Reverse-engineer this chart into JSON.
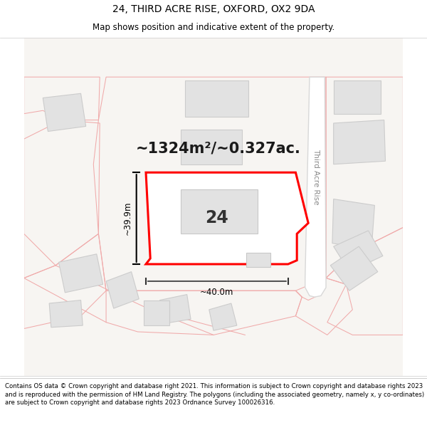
{
  "title": "24, THIRD ACRE RISE, OXFORD, OX2 9DA",
  "subtitle": "Map shows position and indicative extent of the property.",
  "footer": "Contains OS data © Crown copyright and database right 2021. This information is subject to Crown copyright and database rights 2023 and is reproduced with the permission of HM Land Registry. The polygons (including the associated geometry, namely x, y co-ordinates) are subject to Crown copyright and database rights 2023 Ordnance Survey 100026316.",
  "area_text": "~1324m²/~0.327ac.",
  "label_24": "24",
  "dim_height": "~39.9m",
  "dim_width": "~40.0m",
  "road_label": "Third Acre Rise",
  "bg_color": "#f7f5f2",
  "plot_color": "#ff0000",
  "plot_fill": "#ffffff",
  "building_fill": "#e2e2e2",
  "road_pill_fill": "#f0f0f0",
  "road_pill_edge": "#d8d8d8",
  "pink_line": "#f0aaaa",
  "title_fontsize": 10,
  "subtitle_fontsize": 8.5,
  "footer_fontsize": 6.2,
  "area_fontsize": 15,
  "label_fontsize": 17,
  "dim_fontsize": 8.5
}
